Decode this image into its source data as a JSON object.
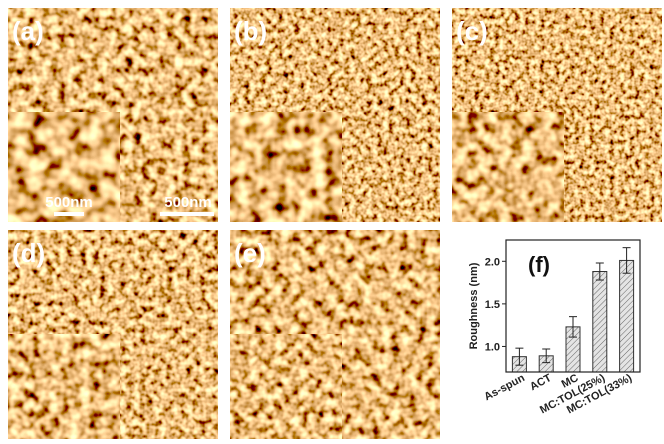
{
  "panels": [
    {
      "label": "(a)",
      "scale_labels": [
        "500nm",
        "500nm"
      ]
    },
    {
      "label": "(b)"
    },
    {
      "label": "(c)"
    },
    {
      "label": "(d)"
    },
    {
      "label": "(e)"
    }
  ],
  "chart_data": {
    "type": "bar",
    "title": "(f)",
    "y_label": "Roughness (nm)",
    "categories": [
      "As-spun",
      "ACT",
      "MC",
      "MC:TOL(25%)",
      "MC:TOL(33%)"
    ],
    "values": [
      0.88,
      0.89,
      1.23,
      1.88,
      2.01
    ],
    "errors": [
      0.1,
      0.08,
      0.12,
      0.1,
      0.15
    ],
    "color": "#cfcfcf",
    "ylim": [
      0.7,
      2.25
    ],
    "yticks": [
      {
        "value": 1,
        "label": "1.0"
      },
      {
        "value": 1.5,
        "label": "1.5"
      },
      {
        "value": 2,
        "label": "2.0"
      }
    ]
  }
}
